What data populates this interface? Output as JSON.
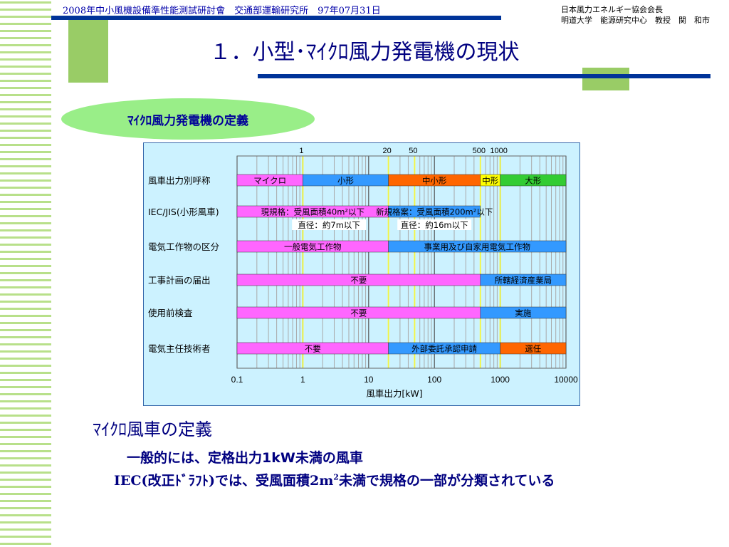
{
  "header": {
    "left": "2008年中小風機設備準性能測試研討會　交通部運輸研究所　97年07月31日",
    "right_line1": "日本風力エネルギー協会会長",
    "right_line2": "明道大学　能源研究中心　教授　関　和市"
  },
  "title": "１．小型･ﾏｲｸﾛ風力発電機の現状",
  "pill_label": "ﾏｲｸﾛ風力発電機の定義",
  "colors": {
    "navy": "#003399",
    "green_block": "#99cc66",
    "pill": "#99ee88",
    "chart_bg": "#ccf2ff",
    "magenta": "#ff66ff",
    "blue": "#3399ff",
    "orange": "#ff6600",
    "yellow": "#ffff00",
    "green": "#33cc33"
  },
  "chart_data": {
    "type": "bar",
    "x_scale": "log",
    "xlim": [
      0.1,
      10000
    ],
    "xlabel": "風車出力[kW]",
    "x_ticks": [
      0.1,
      1,
      10,
      100,
      1000,
      10000
    ],
    "x_tick_labels": [
      "0.1",
      "1",
      "10",
      "100",
      "1000",
      "10000"
    ],
    "top_marks": [
      {
        "x": 1,
        "label": "1"
      },
      {
        "x": 20,
        "label": "20"
      },
      {
        "x": 50,
        "label": "50"
      },
      {
        "x": 500,
        "label": "500"
      },
      {
        "x": 1000,
        "label": "1000"
      }
    ],
    "rows": [
      {
        "label": "風車出力別呼称",
        "segments": [
          {
            "from": 0.1,
            "to": 1,
            "label": "マイクロ",
            "color": "magenta"
          },
          {
            "from": 1,
            "to": 20,
            "label": "小形",
            "color": "blue"
          },
          {
            "from": 20,
            "to": 500,
            "label": "中小形",
            "color": "orange"
          },
          {
            "from": 500,
            "to": 1000,
            "label": "中形",
            "color": "yellow"
          },
          {
            "from": 1000,
            "to": 10000,
            "label": "大形",
            "color": "green"
          }
        ]
      },
      {
        "label": "IEC/JIS(小形風車)",
        "segments": [
          {
            "from": 0.1,
            "to": 20,
            "label": "現規格：受風面積40m²以下",
            "color": "magenta"
          },
          {
            "from": 20,
            "to": 500,
            "label": "新規格案：受風面積200m²以下",
            "color": "blue"
          }
        ],
        "notes": [
          {
            "at": 2.5,
            "label": "直径：約7m以下"
          },
          {
            "at": 100,
            "label": "直径：約16m以下"
          }
        ]
      },
      {
        "label": "電気工作物の区分",
        "segments": [
          {
            "from": 0.1,
            "to": 20,
            "label": "一般電気工作物",
            "color": "magenta"
          },
          {
            "from": 20,
            "to": 10000,
            "label": "事業用及び自家用電気工作物",
            "color": "blue"
          }
        ]
      },
      {
        "label": "工事計画の届出",
        "segments": [
          {
            "from": 0.1,
            "to": 500,
            "label": "不要",
            "color": "magenta"
          },
          {
            "from": 500,
            "to": 10000,
            "label": "所轄経済産業局",
            "color": "blue"
          }
        ]
      },
      {
        "label": "使用前検査",
        "segments": [
          {
            "from": 0.1,
            "to": 500,
            "label": "不要",
            "color": "magenta"
          },
          {
            "from": 500,
            "to": 10000,
            "label": "実施",
            "color": "blue"
          }
        ]
      },
      {
        "label": "電気主任技術者",
        "segments": [
          {
            "from": 0.1,
            "to": 20,
            "label": "不要",
            "color": "magenta"
          },
          {
            "from": 20,
            "to": 1000,
            "label": "外部委託承認申請",
            "color": "blue"
          },
          {
            "from": 1000,
            "to": 10000,
            "label": "選任",
            "color": "orange"
          }
        ]
      }
    ]
  },
  "section_title": "ﾏｲｸﾛ風車の定義",
  "definition_line1": "一般的には、定格出力1kW未満の風車",
  "definition_line2_pre": "IEC(改正ﾄﾞﾗﾌﾄ)では、受風面積2m",
  "definition_line2_sup": "2",
  "definition_line2_post": "未満で規格の一部が分類されている"
}
